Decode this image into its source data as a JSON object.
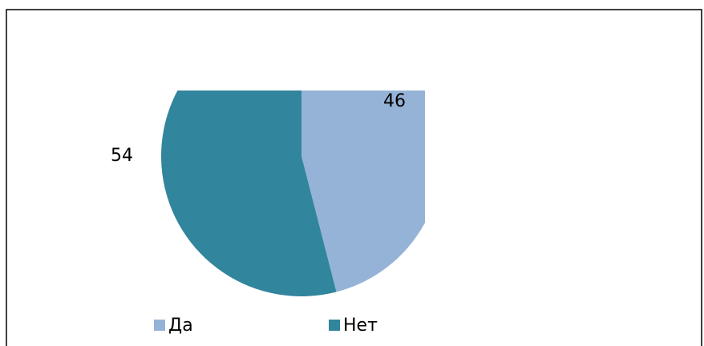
{
  "chart_data": {
    "type": "pie",
    "categories": [
      "Да",
      "Нет"
    ],
    "values": [
      46,
      54
    ],
    "colors": [
      "#95b3d7",
      "#31859c"
    ],
    "legend": "bottom"
  }
}
